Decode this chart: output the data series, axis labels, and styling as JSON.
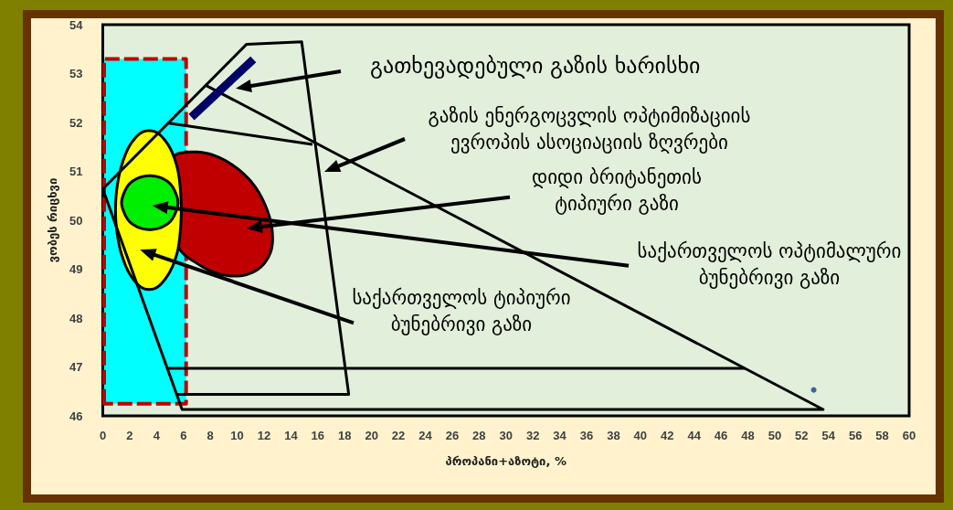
{
  "chart_data": {
    "type": "line",
    "xlabel": "პროპანი+აზოტი, %",
    "ylabel": "ვობეს რიცხვი",
    "xlim": [
      0,
      60
    ],
    "xticks": [
      0,
      2,
      4,
      6,
      8,
      10,
      12,
      14,
      16,
      18,
      20,
      22,
      24,
      26,
      28,
      30,
      32,
      34,
      36,
      38,
      40,
      42,
      44,
      46,
      48,
      50,
      52,
      54,
      56,
      58,
      60
    ],
    "ylim": [
      46,
      54
    ],
    "yticks": [
      46,
      47,
      48,
      49,
      50,
      51,
      52,
      53,
      54
    ],
    "grid": false,
    "marker": "none",
    "annotations": [
      "გათხევადებული გაზის ხარისხი",
      "გაზის ენერგოცვლის ოპტიმიზაციის\nევროპის ასოციაციის ზღვრები",
      "დიდი ბრიტანეთის\nტიპიური გაზი",
      "საქართველოს ოპტიმალური\nბუნებრივი გაზი",
      "საქართველოს ტიპიური\nბუნებრივი გაზი"
    ],
    "series": [
      {
        "type": "area",
        "color": "#00ffff",
        "line_style": "dashed",
        "x": [
          0.1,
          0.1,
          6.2,
          6.2
        ],
        "values": [
          46.25,
          53.3,
          53.3,
          46.25
        ]
      },
      {
        "color": "#000000",
        "x": [
          0,
          10.7,
          14.8,
          18.3,
          5.5
        ],
        "values": [
          50.64,
          53.6,
          53.65,
          46.44,
          46.44
        ]
      },
      {
        "color": "#000000",
        "x": [
          0,
          5.9,
          53.6,
          7.6
        ],
        "values": [
          50.64,
          46.13,
          46.13,
          52.77
        ]
      },
      {
        "color": "#000000",
        "x": [
          4.8,
          15.6
        ],
        "values": [
          51.99,
          51.55
        ]
      },
      {
        "color": "#000000",
        "x": [
          4.8,
          47.8
        ],
        "values": [
          46.97,
          46.97
        ]
      },
      {
        "type": "area",
        "color": "#c00000",
        "x": [
          5.3,
          6.2,
          7.9,
          9.6,
          11.1,
          12.1,
          12.6,
          12.5,
          11.7,
          10.4,
          8.7,
          7.0,
          5.6
        ],
        "values": [
          51.3,
          51.39,
          51.36,
          51.14,
          50.77,
          50.3,
          49.8,
          49.36,
          49.03,
          48.87,
          48.9,
          49.12,
          49.47
        ]
      },
      {
        "type": "area",
        "color": "#ffff00",
        "x": [
          5.8,
          5.5,
          4.8,
          3.9,
          3.0,
          2.1,
          1.4,
          1.0,
          1.0,
          1.4,
          2.1,
          3.0,
          3.9,
          4.8,
          5.5,
          5.8
        ],
        "values": [
          50.53,
          51.12,
          51.57,
          51.81,
          51.81,
          51.57,
          51.12,
          50.53,
          49.89,
          49.3,
          48.86,
          48.61,
          48.61,
          48.86,
          49.3,
          49.89
        ]
      },
      {
        "type": "area",
        "color": "#00ee00",
        "x": [
          5.6,
          5.4,
          5.0,
          4.3,
          3.5,
          2.7,
          2.0,
          1.6,
          1.4,
          1.6,
          2.0,
          2.7,
          3.5,
          4.3,
          5.0,
          5.4
        ],
        "values": [
          50.36,
          50.57,
          50.75,
          50.87,
          50.91,
          50.87,
          50.75,
          50.57,
          50.36,
          50.15,
          49.97,
          49.85,
          49.81,
          49.85,
          49.97,
          50.15
        ]
      },
      {
        "color": "#000066",
        "x": [
          6.6,
          11.2
        ],
        "values": [
          52.11,
          53.29
        ]
      },
      {
        "type": "scatter",
        "color": "#1f3c88",
        "marker": "circle",
        "x": [
          52.9
        ],
        "values": [
          46.53
        ]
      }
    ]
  }
}
